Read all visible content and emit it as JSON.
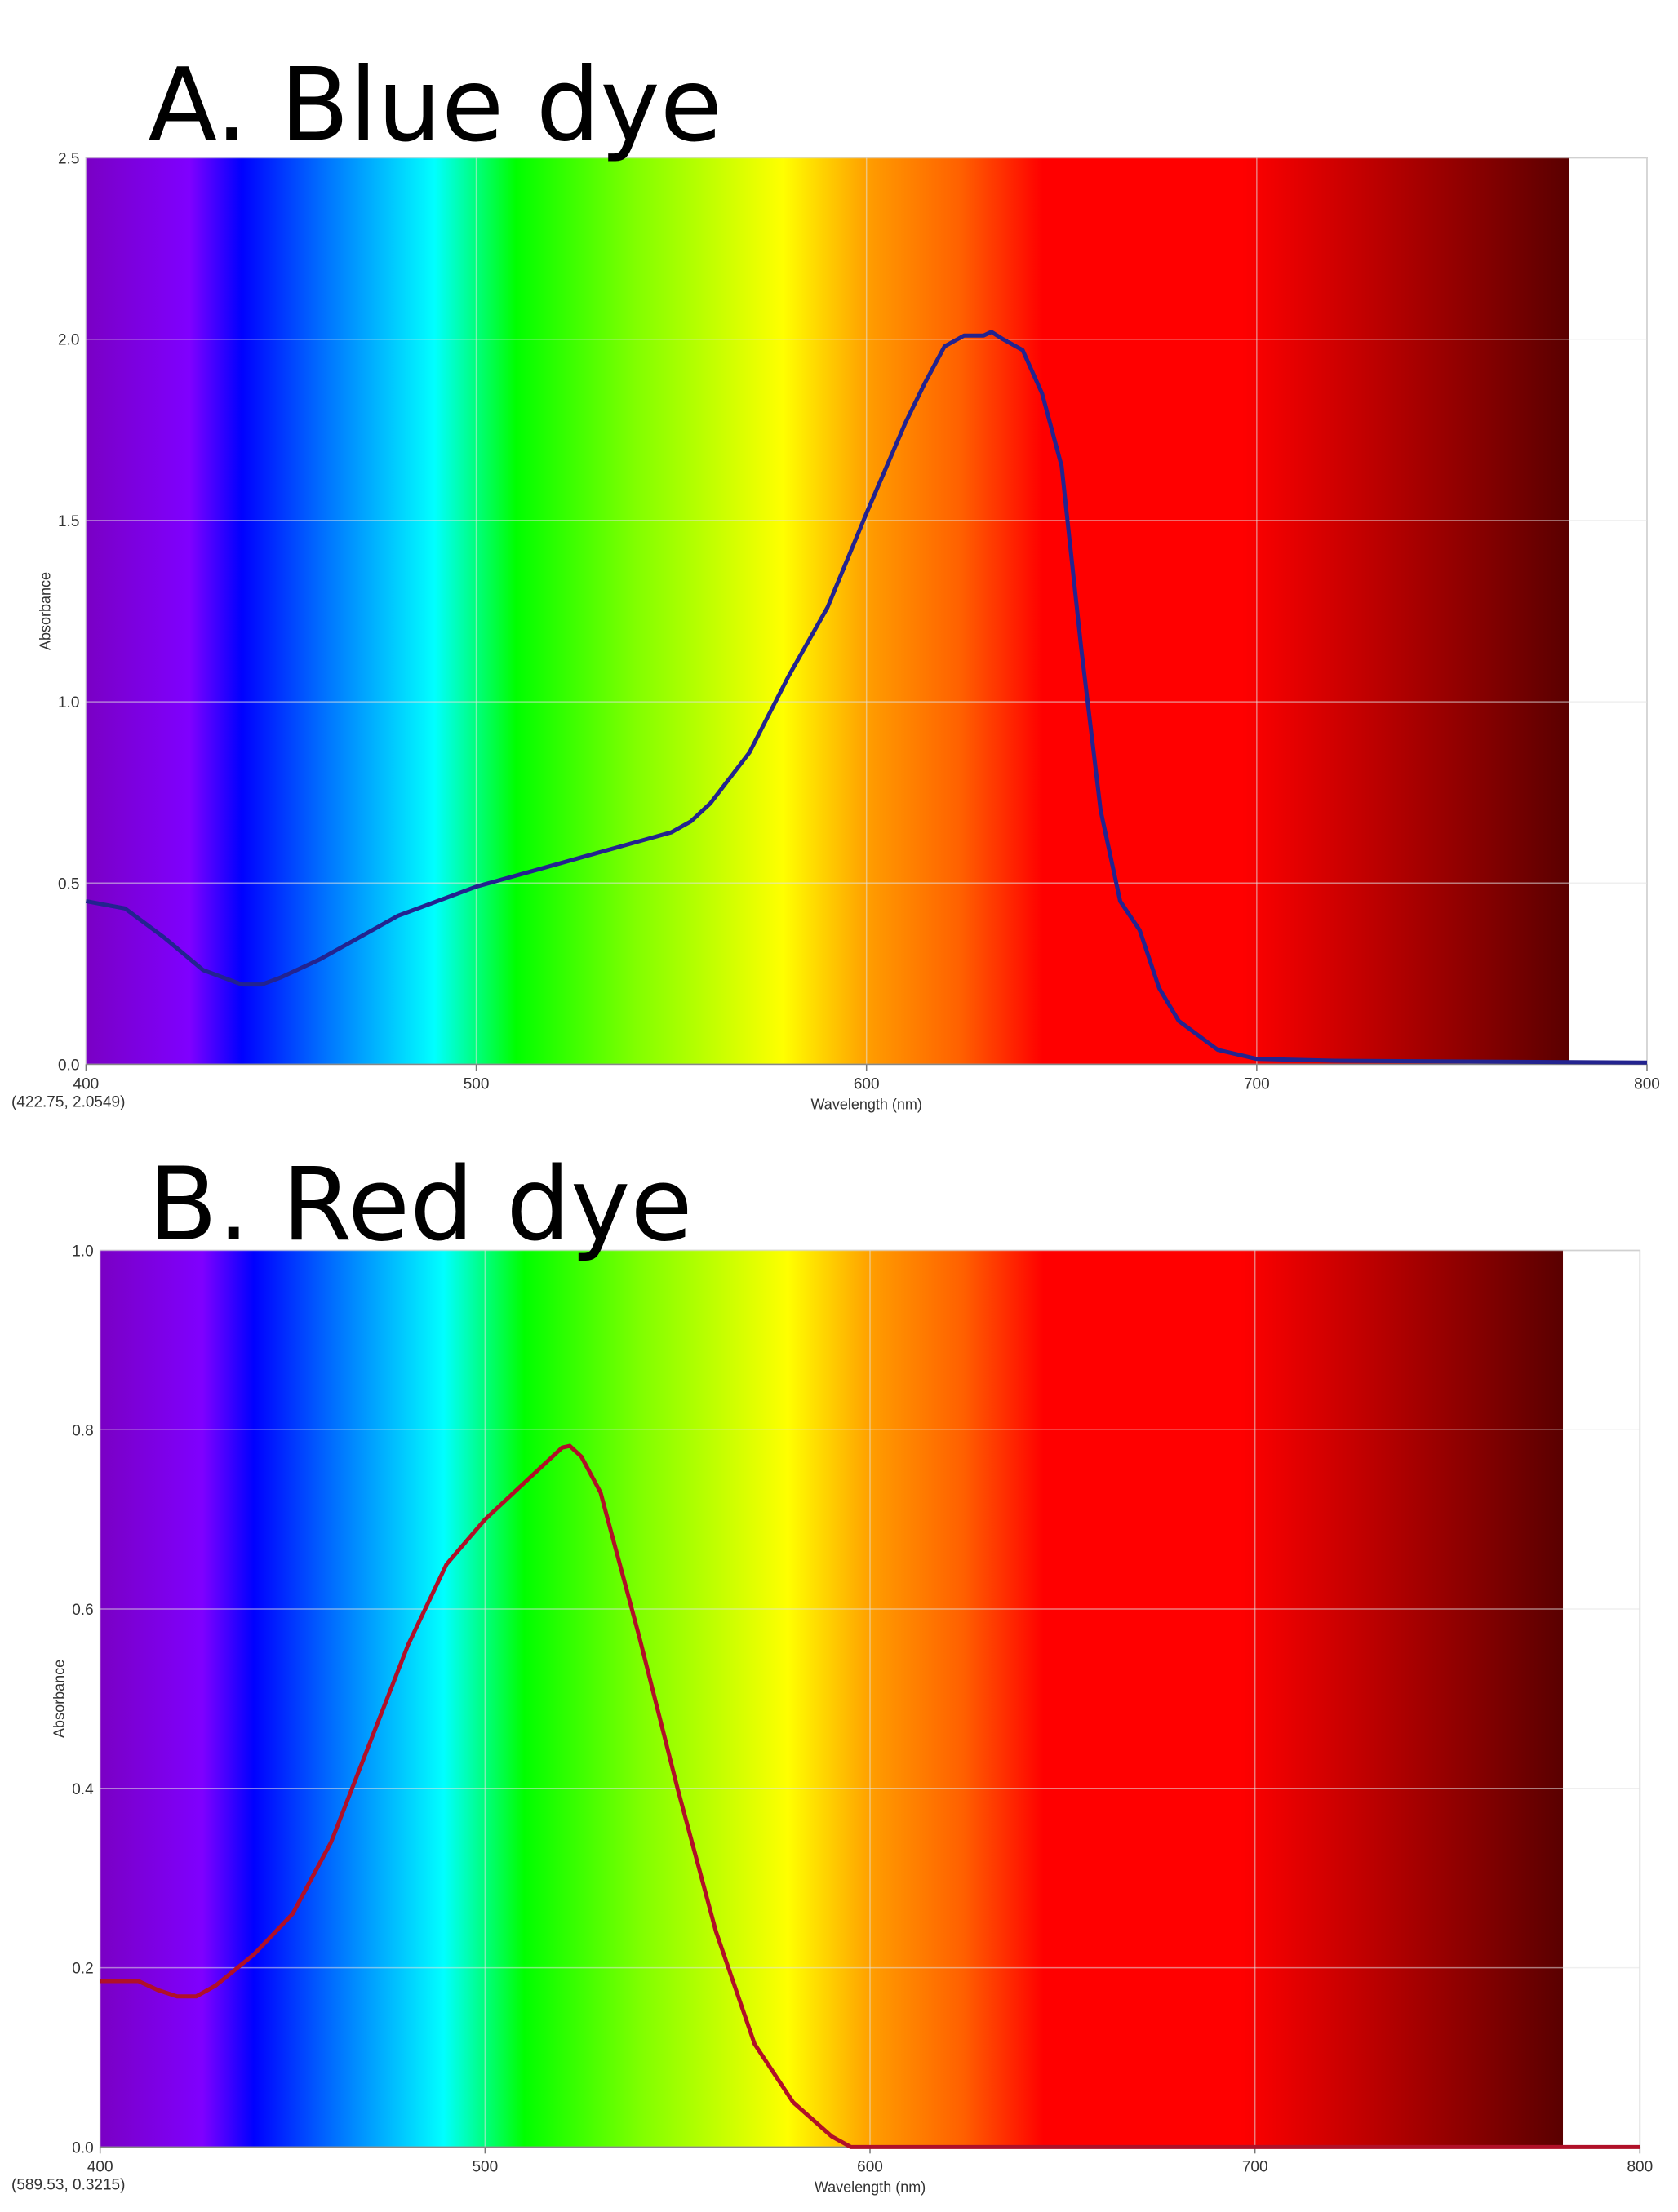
{
  "chart_data": [
    {
      "type": "line",
      "title": "A. Blue dye",
      "x_label": "Wavelength (nm)",
      "y_label": "Absorbance",
      "y_label_color": "#0000ff",
      "annotation": "(422.75, 2.0549)",
      "color": "#23238f",
      "xlim": [
        400,
        800
      ],
      "xticks": [
        400,
        500,
        600,
        700,
        800
      ],
      "ylim": [
        0,
        2.5
      ],
      "yticks": [
        {
          "value": 0,
          "label": "0.0"
        },
        0.5,
        {
          "value": 1,
          "label": "1.0"
        },
        1.5,
        {
          "value": 2,
          "label": "2.0"
        },
        2.5
      ],
      "grid": true,
      "x": [
        400,
        410,
        420,
        430,
        440,
        445,
        450,
        460,
        470,
        480,
        490,
        500,
        510,
        520,
        530,
        540,
        550,
        555,
        560,
        570,
        580,
        590,
        600,
        610,
        615,
        620,
        625,
        630,
        632,
        635,
        640,
        645,
        650,
        655,
        660,
        665,
        670,
        675,
        680,
        690,
        700,
        720,
        750,
        800
      ],
      "values": [
        0.45,
        0.43,
        0.35,
        0.26,
        0.22,
        0.22,
        0.24,
        0.29,
        0.35,
        0.41,
        0.45,
        0.49,
        0.52,
        0.55,
        0.58,
        0.61,
        0.64,
        0.67,
        0.72,
        0.86,
        1.07,
        1.26,
        1.52,
        1.77,
        1.88,
        1.98,
        2.01,
        2.01,
        2.02,
        2.0,
        1.97,
        1.85,
        1.65,
        1.15,
        0.7,
        0.45,
        0.37,
        0.21,
        0.12,
        0.04,
        0.015,
        0.01,
        0.008,
        0.005
      ]
    },
    {
      "type": "line",
      "title": "B. Red dye",
      "x_label": "Wavelength (nm)",
      "y_label": "Absorbance",
      "y_label_color": "#ff3050",
      "annotation": "(589.53, 0.3215)",
      "color": "#b01028",
      "xlim": [
        400,
        800
      ],
      "xticks": [
        400,
        500,
        600,
        700,
        800
      ],
      "ylim": [
        0,
        1
      ],
      "yticks": [
        {
          "value": 0,
          "label": "0.0"
        },
        0.2,
        0.4,
        0.6,
        0.8,
        {
          "value": 1,
          "label": "1.0"
        }
      ],
      "grid": true,
      "x": [
        400,
        410,
        415,
        420,
        425,
        430,
        440,
        450,
        460,
        470,
        480,
        490,
        500,
        510,
        520,
        522,
        525,
        530,
        540,
        550,
        560,
        570,
        580,
        590,
        595,
        600,
        800
      ],
      "values": [
        0.185,
        0.185,
        0.175,
        0.168,
        0.168,
        0.18,
        0.215,
        0.26,
        0.34,
        0.45,
        0.56,
        0.65,
        0.7,
        0.74,
        0.78,
        0.782,
        0.77,
        0.73,
        0.57,
        0.4,
        0.24,
        0.115,
        0.05,
        0.012,
        0,
        0,
        0
      ]
    }
  ]
}
